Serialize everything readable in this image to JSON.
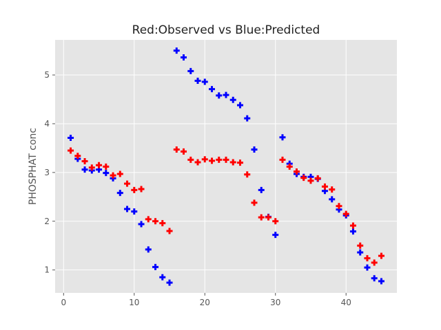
{
  "chart_data": {
    "type": "scatter",
    "title": "Red:Observed vs Blue:Predicted",
    "xlabel": "",
    "ylabel": "PHOSPHAT conc",
    "xlim": [
      -1.2,
      47.2
    ],
    "ylim": [
      0.53,
      5.72
    ],
    "xticks": [
      0,
      10,
      20,
      30,
      40
    ],
    "yticks": [
      1,
      2,
      3,
      4,
      5
    ],
    "grid": true,
    "marker": "plus",
    "x": [
      1,
      2,
      3,
      4,
      5,
      6,
      7,
      8,
      9,
      10,
      11,
      12,
      13,
      14,
      15,
      16,
      17,
      18,
      19,
      20,
      21,
      22,
      23,
      24,
      25,
      26,
      27,
      28,
      29,
      30,
      31,
      32,
      33,
      34,
      35,
      36,
      37,
      38,
      39,
      40,
      41,
      42,
      43,
      44,
      45
    ],
    "series": [
      {
        "color": "#0000ff",
        "values": [
          3.71,
          3.28,
          3.06,
          3.04,
          3.06,
          2.99,
          2.88,
          2.58,
          2.25,
          2.2,
          1.94,
          1.42,
          1.06,
          0.85,
          0.74,
          5.5,
          5.36,
          5.08,
          4.88,
          4.86,
          4.71,
          4.58,
          4.59,
          4.49,
          4.38,
          4.11,
          3.47,
          2.64,
          2.09,
          1.72,
          3.72,
          3.18,
          2.97,
          2.91,
          2.91,
          2.87,
          2.62,
          2.45,
          2.24,
          2.12,
          1.79,
          1.36,
          1.05,
          0.83,
          0.77
        ]
      },
      {
        "color": "#ff0000",
        "values": [
          3.45,
          3.34,
          3.23,
          3.1,
          3.15,
          3.12,
          2.94,
          2.97,
          2.77,
          2.64,
          2.66,
          2.04,
          2.0,
          1.96,
          1.8,
          3.47,
          3.43,
          3.26,
          3.21,
          3.27,
          3.24,
          3.26,
          3.26,
          3.21,
          3.2,
          2.96,
          2.38,
          2.08,
          2.08,
          2.0,
          3.26,
          3.12,
          3.02,
          2.89,
          2.83,
          2.88,
          2.71,
          2.65,
          2.31,
          2.15,
          1.91,
          1.5,
          1.24,
          1.15,
          1.29
        ]
      }
    ]
  }
}
